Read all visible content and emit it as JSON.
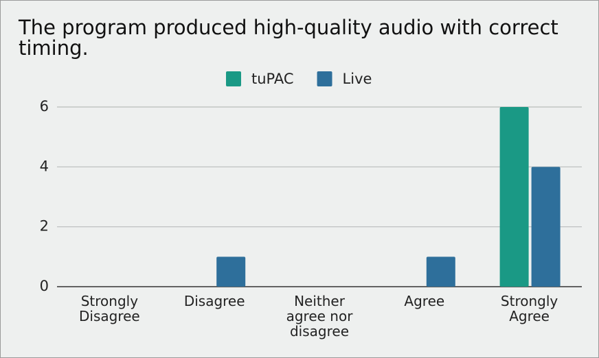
{
  "chart_data": {
    "type": "bar",
    "title": "The program produced high-quality audio with correct timing.",
    "categories": [
      "Strongly Disagree",
      "Disagree",
      "Neither agree nor disagree",
      "Agree",
      "Strongly Agree"
    ],
    "series": [
      {
        "name": "tuPAC",
        "color": "#1a9985",
        "values": [
          0,
          0,
          0,
          0,
          6
        ]
      },
      {
        "name": "Live",
        "color": "#2e6f9b",
        "values": [
          0,
          1,
          0,
          1,
          4
        ]
      }
    ],
    "ylim": [
      0,
      6
    ],
    "yticks": [
      0,
      2,
      4,
      6
    ],
    "grid": true,
    "legend": "top"
  }
}
